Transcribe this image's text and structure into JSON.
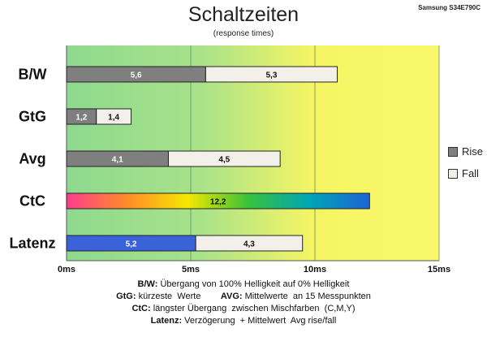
{
  "header": {
    "title": "Schaltzeiten",
    "subtitle": "(response times)",
    "brand": "Samsung S34E790C"
  },
  "legend": {
    "rise": "Rise",
    "fall": "Fall"
  },
  "colors": {
    "rise": "#7f7f7f",
    "fall": "#f2f0e8",
    "latenz_rise": "#3b63d9",
    "ctc_gradient": [
      "#ff3c8c",
      "#ff8c28",
      "#f5e800",
      "#38c23a",
      "#00a6b4",
      "#1e63d6"
    ],
    "background_gradient": [
      "#8ed98e",
      "#a9e28a",
      "#f5f564",
      "#f8f86a"
    ]
  },
  "chart_data": {
    "type": "bar",
    "orientation": "horizontal",
    "stacked": true,
    "title": "Schaltzeiten",
    "subtitle": "(response times)",
    "categories": [
      "B/W",
      "GtG",
      "Avg",
      "CtC",
      "Latenz"
    ],
    "series": [
      {
        "name": "Rise",
        "values": [
          5.6,
          1.2,
          4.1,
          12.2,
          5.2
        ],
        "labels": [
          "5,6",
          "1,2",
          "4,1",
          "12,2",
          "5,2"
        ]
      },
      {
        "name": "Fall",
        "values": [
          5.3,
          1.4,
          4.5,
          null,
          4.3
        ],
        "labels": [
          "5,3",
          "1,4",
          "4,5",
          "",
          "4,3"
        ]
      }
    ],
    "xlim": [
      0,
      15
    ],
    "xticks": [
      0,
      5,
      10,
      15
    ],
    "xtick_labels": [
      "0ms",
      "5ms",
      "10ms",
      "15ms"
    ],
    "grid": "vertical",
    "legend_position": "right"
  },
  "notes": [
    {
      "key": "B/W:",
      "text": " Übergang von 100% Helligkeit auf 0% Helligkeit"
    },
    {
      "key": "GtG:",
      "text": " kürzeste  Werte        ",
      "key2": "AVG:",
      "text2": " Mittelwerte  an 15 Messpunkten"
    },
    {
      "key": "CtC:",
      "text": " längster Übergang  zwischen Mischfarben  (C,M,Y)"
    },
    {
      "key": "Latenz:",
      "text": " Verzögerung  + Mittelwert  Avg rise/fall"
    }
  ]
}
